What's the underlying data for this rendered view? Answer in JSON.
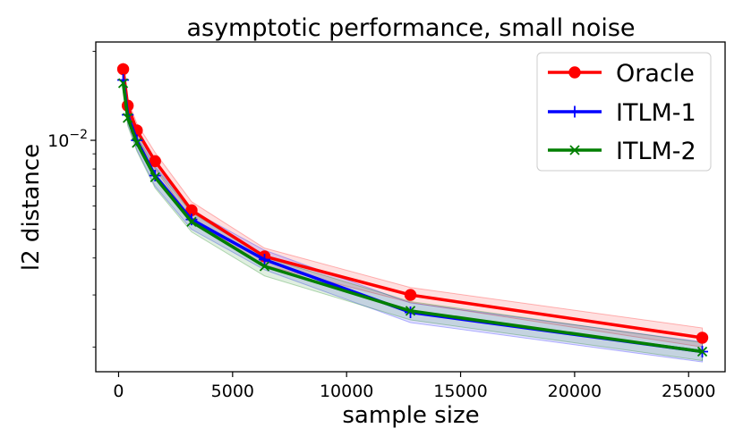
{
  "chart_data": {
    "type": "line",
    "title": "asymptotic performance, small noise",
    "xlabel": "sample size",
    "ylabel": "l2 distance",
    "xscale": "linear",
    "yscale": "log",
    "xlim": [
      -1000,
      26600
    ],
    "ylim": [
      0.00165,
      0.0215
    ],
    "xticks": [
      0,
      5000,
      10000,
      15000,
      20000,
      25000
    ],
    "xtick_labels": [
      "0",
      "5000",
      "10000",
      "15000",
      "20000",
      "25000"
    ],
    "ytick_label_base": "10",
    "ytick_label_exp": "−2",
    "ytick_value": 0.01,
    "legend_position": "upper right",
    "x": [
      200,
      400,
      800,
      1600,
      3200,
      6400,
      12800,
      25600
    ],
    "series": [
      {
        "name": "Oracle",
        "color": "#ff0000",
        "marker": "circle",
        "values": [
          0.0174,
          0.0131,
          0.0108,
          0.0085,
          0.0058,
          0.00405,
          0.003,
          0.00215
        ],
        "band_low": [
          0.0165,
          0.0124,
          0.0102,
          0.008,
          0.0054,
          0.00378,
          0.00283,
          0.002
        ],
        "band_high": [
          0.0183,
          0.0138,
          0.0114,
          0.0091,
          0.0062,
          0.00432,
          0.00318,
          0.00232
        ]
      },
      {
        "name": "ITLM-1",
        "color": "#0000ff",
        "marker": "plus",
        "values": [
          0.016,
          0.0122,
          0.01,
          0.0076,
          0.0054,
          0.00395,
          0.00262,
          0.00193
        ],
        "band_low": [
          0.0151,
          0.0114,
          0.0093,
          0.007,
          0.005,
          0.00365,
          0.00242,
          0.00178
        ],
        "band_high": [
          0.017,
          0.013,
          0.0107,
          0.0082,
          0.0058,
          0.00425,
          0.00282,
          0.00208
        ]
      },
      {
        "name": "ITLM-2",
        "color": "#007f00",
        "marker": "x",
        "values": [
          0.0156,
          0.0119,
          0.0098,
          0.0075,
          0.0053,
          0.00375,
          0.00265,
          0.00193
        ],
        "band_low": [
          0.0148,
          0.0112,
          0.0092,
          0.0069,
          0.0049,
          0.00348,
          0.00247,
          0.0018
        ],
        "band_high": [
          0.0165,
          0.0126,
          0.0104,
          0.0081,
          0.0057,
          0.00402,
          0.00285,
          0.00207
        ]
      }
    ]
  }
}
